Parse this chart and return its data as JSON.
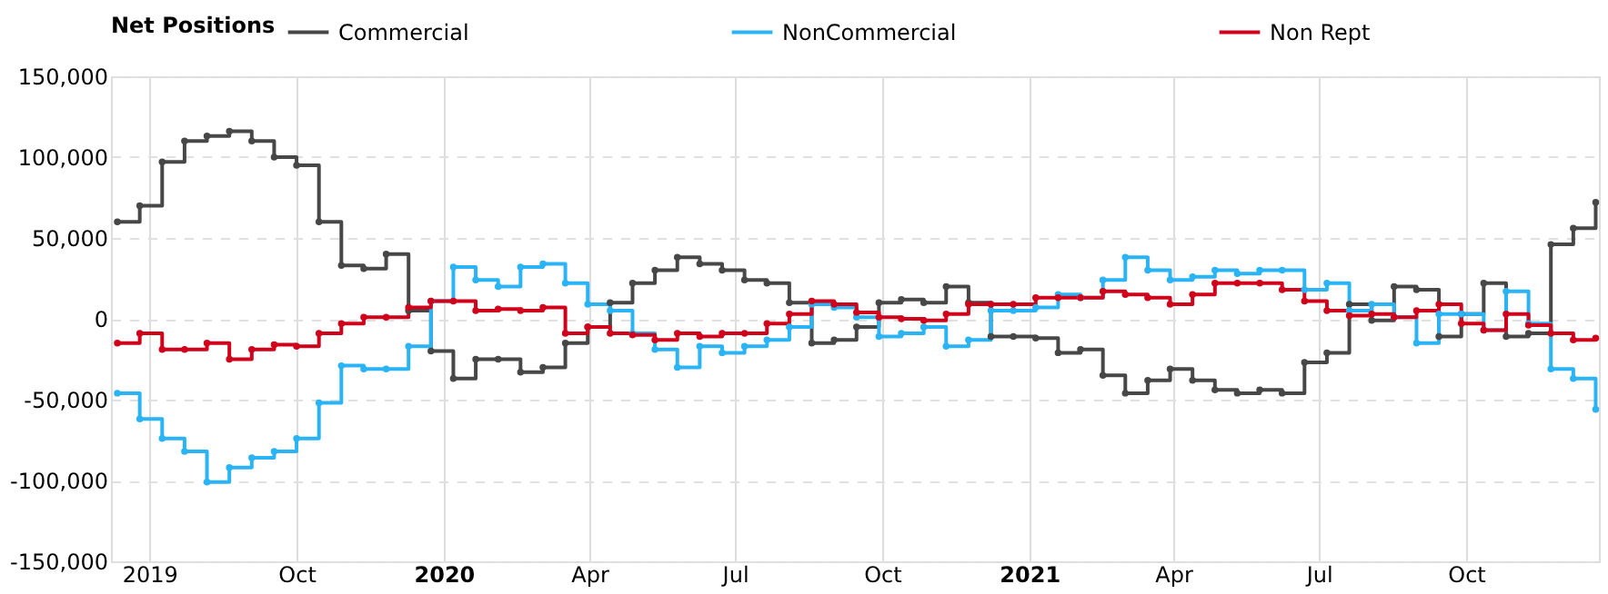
{
  "chart_data": {
    "type": "step",
    "legend_title": "Net Positions",
    "x": [
      "2019-06-11",
      "2019-06-25",
      "2019-07-09",
      "2019-07-23",
      "2019-08-06",
      "2019-08-20",
      "2019-09-03",
      "2019-09-17",
      "2019-10-01",
      "2019-10-15",
      "2019-10-29",
      "2019-11-12",
      "2019-11-26",
      "2019-12-10",
      "2019-12-24",
      "2020-01-07",
      "2020-01-21",
      "2020-02-04",
      "2020-02-18",
      "2020-03-03",
      "2020-03-17",
      "2020-03-31",
      "2020-04-14",
      "2020-04-28",
      "2020-05-12",
      "2020-05-26",
      "2020-06-09",
      "2020-06-23",
      "2020-07-07",
      "2020-07-21",
      "2020-08-04",
      "2020-08-18",
      "2020-09-01",
      "2020-09-15",
      "2020-09-29",
      "2020-10-13",
      "2020-10-27",
      "2020-11-10",
      "2020-11-24",
      "2020-12-08",
      "2020-12-22",
      "2021-01-05",
      "2021-01-19",
      "2021-02-02",
      "2021-02-16",
      "2021-03-02",
      "2021-03-16",
      "2021-03-30",
      "2021-04-13",
      "2021-04-27",
      "2021-05-11",
      "2021-05-25",
      "2021-06-08",
      "2021-06-22",
      "2021-07-06",
      "2021-07-20",
      "2021-08-03",
      "2021-08-17",
      "2021-08-31",
      "2021-09-14",
      "2021-09-28",
      "2021-10-12",
      "2021-10-26",
      "2021-11-09",
      "2021-11-23",
      "2021-12-07",
      "2021-12-21"
    ],
    "series": [
      {
        "name": "Commercial",
        "color": "#474747",
        "values": [
          60000,
          70000,
          97000,
          110000,
          113000,
          116000,
          110000,
          100000,
          95000,
          60000,
          33000,
          31000,
          40000,
          5000,
          -20000,
          -37000,
          -25000,
          -25000,
          -33000,
          -30000,
          -15000,
          -5000,
          10000,
          22000,
          30000,
          38000,
          34000,
          30000,
          24000,
          22000,
          10000,
          -15000,
          -13000,
          -5000,
          10000,
          12000,
          10000,
          20000,
          10000,
          -11000,
          -11000,
          -12000,
          -21000,
          -19000,
          -35000,
          -46000,
          -38000,
          -31000,
          -38000,
          -44000,
          -46000,
          -44000,
          -46000,
          -27000,
          -21000,
          9000,
          -1000,
          20000,
          18000,
          -11000,
          3000,
          22000,
          -11000,
          -9000,
          46000,
          56000,
          72000
        ]
      },
      {
        "name": "NonCommercial",
        "color": "#2ab4f5",
        "values": [
          -46000,
          -62000,
          -74000,
          -82000,
          -101000,
          -92000,
          -86000,
          -82000,
          -74000,
          -52000,
          -29000,
          -31000,
          -31000,
          -17000,
          11000,
          32000,
          24000,
          20000,
          32000,
          34000,
          22000,
          9000,
          5000,
          -9000,
          -19000,
          -30000,
          -17000,
          -21000,
          -17000,
          -13000,
          -5000,
          9000,
          7000,
          1000,
          -11000,
          -9000,
          -5000,
          -17000,
          -13000,
          5000,
          5000,
          7000,
          15000,
          13000,
          24000,
          38000,
          30000,
          24000,
          26000,
          30000,
          28000,
          30000,
          30000,
          18000,
          22000,
          5000,
          9000,
          1000,
          -15000,
          3000,
          3000,
          -7000,
          17000,
          -3000,
          -31000,
          -37000,
          -56000
        ]
      },
      {
        "name": "Non Rept",
        "color": "#d0021b",
        "values": [
          -15000,
          -9000,
          -19000,
          -19000,
          -15000,
          -25000,
          -19000,
          -16000,
          -17000,
          -9000,
          -3000,
          1000,
          1000,
          7000,
          11000,
          11000,
          5000,
          6000,
          5000,
          7000,
          -9000,
          -5000,
          -9000,
          -10000,
          -13000,
          -9000,
          -11000,
          -9000,
          -9000,
          -3000,
          3000,
          11000,
          9000,
          4000,
          1000,
          0,
          -1000,
          3000,
          9000,
          9000,
          9000,
          13000,
          13000,
          13000,
          17000,
          15000,
          13000,
          9000,
          15000,
          22000,
          22000,
          22000,
          18000,
          11000,
          5000,
          2000,
          3000,
          1000,
          5000,
          9000,
          -3000,
          -7000,
          3000,
          -4000,
          -9000,
          -13000,
          -12000
        ]
      }
    ],
    "xlim": [
      "2019-06-07",
      "2021-12-23"
    ],
    "xticks": [
      {
        "value": "2019-07-01",
        "label": "2019"
      },
      {
        "value": "2019-10-01",
        "label": "Oct"
      },
      {
        "value": "2020-01-01",
        "label": "2020"
      },
      {
        "value": "2020-04-01",
        "label": "Apr"
      },
      {
        "value": "2020-07-01",
        "label": "Jul"
      },
      {
        "value": "2020-10-01",
        "label": "Oct"
      },
      {
        "value": "2021-01-01",
        "label": "2021"
      },
      {
        "value": "2021-04-01",
        "label": "Apr"
      },
      {
        "value": "2021-07-01",
        "label": "Jul"
      },
      {
        "value": "2021-10-01",
        "label": "Oct"
      }
    ],
    "ylim": [
      -150000,
      150000
    ],
    "yticks": [
      {
        "value": -150000,
        "label": "-150,000"
      },
      {
        "value": -100000,
        "label": "-100,000"
      },
      {
        "value": -50000,
        "label": "-50,000"
      },
      0,
      {
        "value": 50000,
        "label": "50,000"
      },
      {
        "value": 100000,
        "label": "100,000"
      },
      {
        "value": 150000,
        "label": "150,000"
      }
    ],
    "grid": true,
    "legend": "top",
    "marker": "circle",
    "line_style": "solid"
  }
}
